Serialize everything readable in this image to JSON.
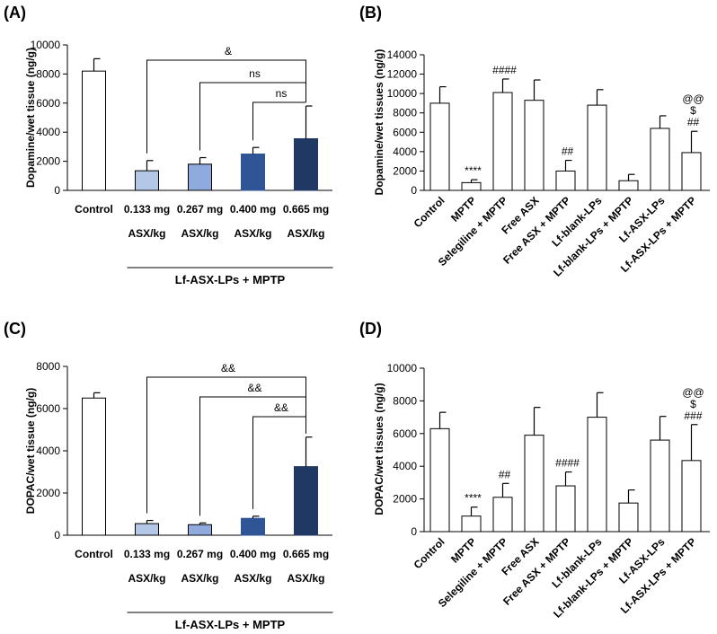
{
  "chart_data": [
    {
      "panel": "(A)",
      "type": "bar",
      "ylabel": "Dopamine/wet tissue (ng/g)",
      "ylim": [
        0,
        10000
      ],
      "yticks": [
        "0",
        "2000",
        "4000",
        "6000",
        "8000",
        "10000"
      ],
      "categories": [
        "Control",
        "0.133 mg",
        "0.267 mg",
        "0.400 mg",
        "0.665 mg"
      ],
      "sublabels": [
        "",
        "ASX/kg",
        "ASX/kg",
        "ASX/kg",
        "ASX/kg"
      ],
      "values": [
        8200,
        1350,
        1800,
        2500,
        3550
      ],
      "errors": [
        850,
        700,
        450,
        450,
        2250
      ],
      "colors": [
        "#ffffff",
        "#b4c7e7",
        "#8faadc",
        "#2f5597",
        "#1f3864"
      ],
      "group_label": "Lf-ASX-LPs + MPTP",
      "comparisons": [
        "&",
        "ns",
        "ns"
      ]
    },
    {
      "panel": "(B)",
      "type": "bar",
      "ylabel": "Dopamine/wet tissues (ng/g)",
      "ylim": [
        0,
        14000
      ],
      "yticks": [
        "0",
        "2000",
        "4000",
        "6000",
        "8000",
        "10000",
        "12000",
        "14000"
      ],
      "categories": [
        "Control",
        "MPTP",
        "Selegiline + MPTP",
        "Free ASX",
        "Free ASX + MPTP",
        "Lf-blank-LPs",
        "Lf-blank-LPs + MPTP",
        "Lf-ASX-LPs",
        "Lf-ASX-LPs + MPTP"
      ],
      "values": [
        9000,
        800,
        10100,
        9300,
        2000,
        8800,
        1000,
        6400,
        3900
      ],
      "errors": [
        1700,
        300,
        1400,
        2100,
        1100,
        1600,
        650,
        1300,
        2200
      ],
      "annotations": [
        [],
        [
          "****"
        ],
        [
          "####"
        ],
        [],
        [
          "##"
        ],
        [],
        [],
        [],
        [
          "@@",
          "$",
          "##"
        ]
      ]
    },
    {
      "panel": "(C)",
      "type": "bar",
      "ylabel": "DOPAC/wet tissue (ng/g)",
      "ylim": [
        0,
        8000
      ],
      "yticks": [
        "0",
        "2000",
        "4000",
        "6000",
        "8000"
      ],
      "categories": [
        "Control",
        "0.133 mg",
        "0.267 mg",
        "0.400 mg",
        "0.665 mg"
      ],
      "sublabels": [
        "",
        "ASX/kg",
        "ASX/kg",
        "ASX/kg",
        "ASX/kg"
      ],
      "values": [
        6500,
        550,
        500,
        800,
        3250
      ],
      "errors": [
        250,
        150,
        80,
        100,
        1400
      ],
      "colors": [
        "#ffffff",
        "#b4c7e7",
        "#8faadc",
        "#2f5597",
        "#1f3864"
      ],
      "group_label": "Lf-ASX-LPs + MPTP",
      "comparisons": [
        "&&",
        "&&",
        "&&"
      ]
    },
    {
      "panel": "(D)",
      "type": "bar",
      "ylabel": "DOPAC/wet tissues (ng/g)",
      "ylim": [
        0,
        10000
      ],
      "yticks": [
        "0",
        "2000",
        "4000",
        "6000",
        "8000",
        "10000"
      ],
      "categories": [
        "Control",
        "MPTP",
        "Selegiline + MPTP",
        "Free ASX",
        "Free ASX + MPTP",
        "Lf-blank-LPs",
        "Lf-blank-LPs + MPTP",
        "Lf-ASX-LPs",
        "Lf-ASX-LPs + MPTP"
      ],
      "values": [
        6300,
        950,
        2100,
        5900,
        2800,
        7000,
        1750,
        5600,
        4350
      ],
      "errors": [
        1000,
        550,
        850,
        1700,
        850,
        1500,
        800,
        1450,
        2200
      ],
      "annotations": [
        [],
        [
          "****"
        ],
        [
          "##"
        ],
        [],
        [
          "####"
        ],
        [],
        [],
        [],
        [
          "@@",
          "$",
          "###"
        ]
      ]
    }
  ]
}
